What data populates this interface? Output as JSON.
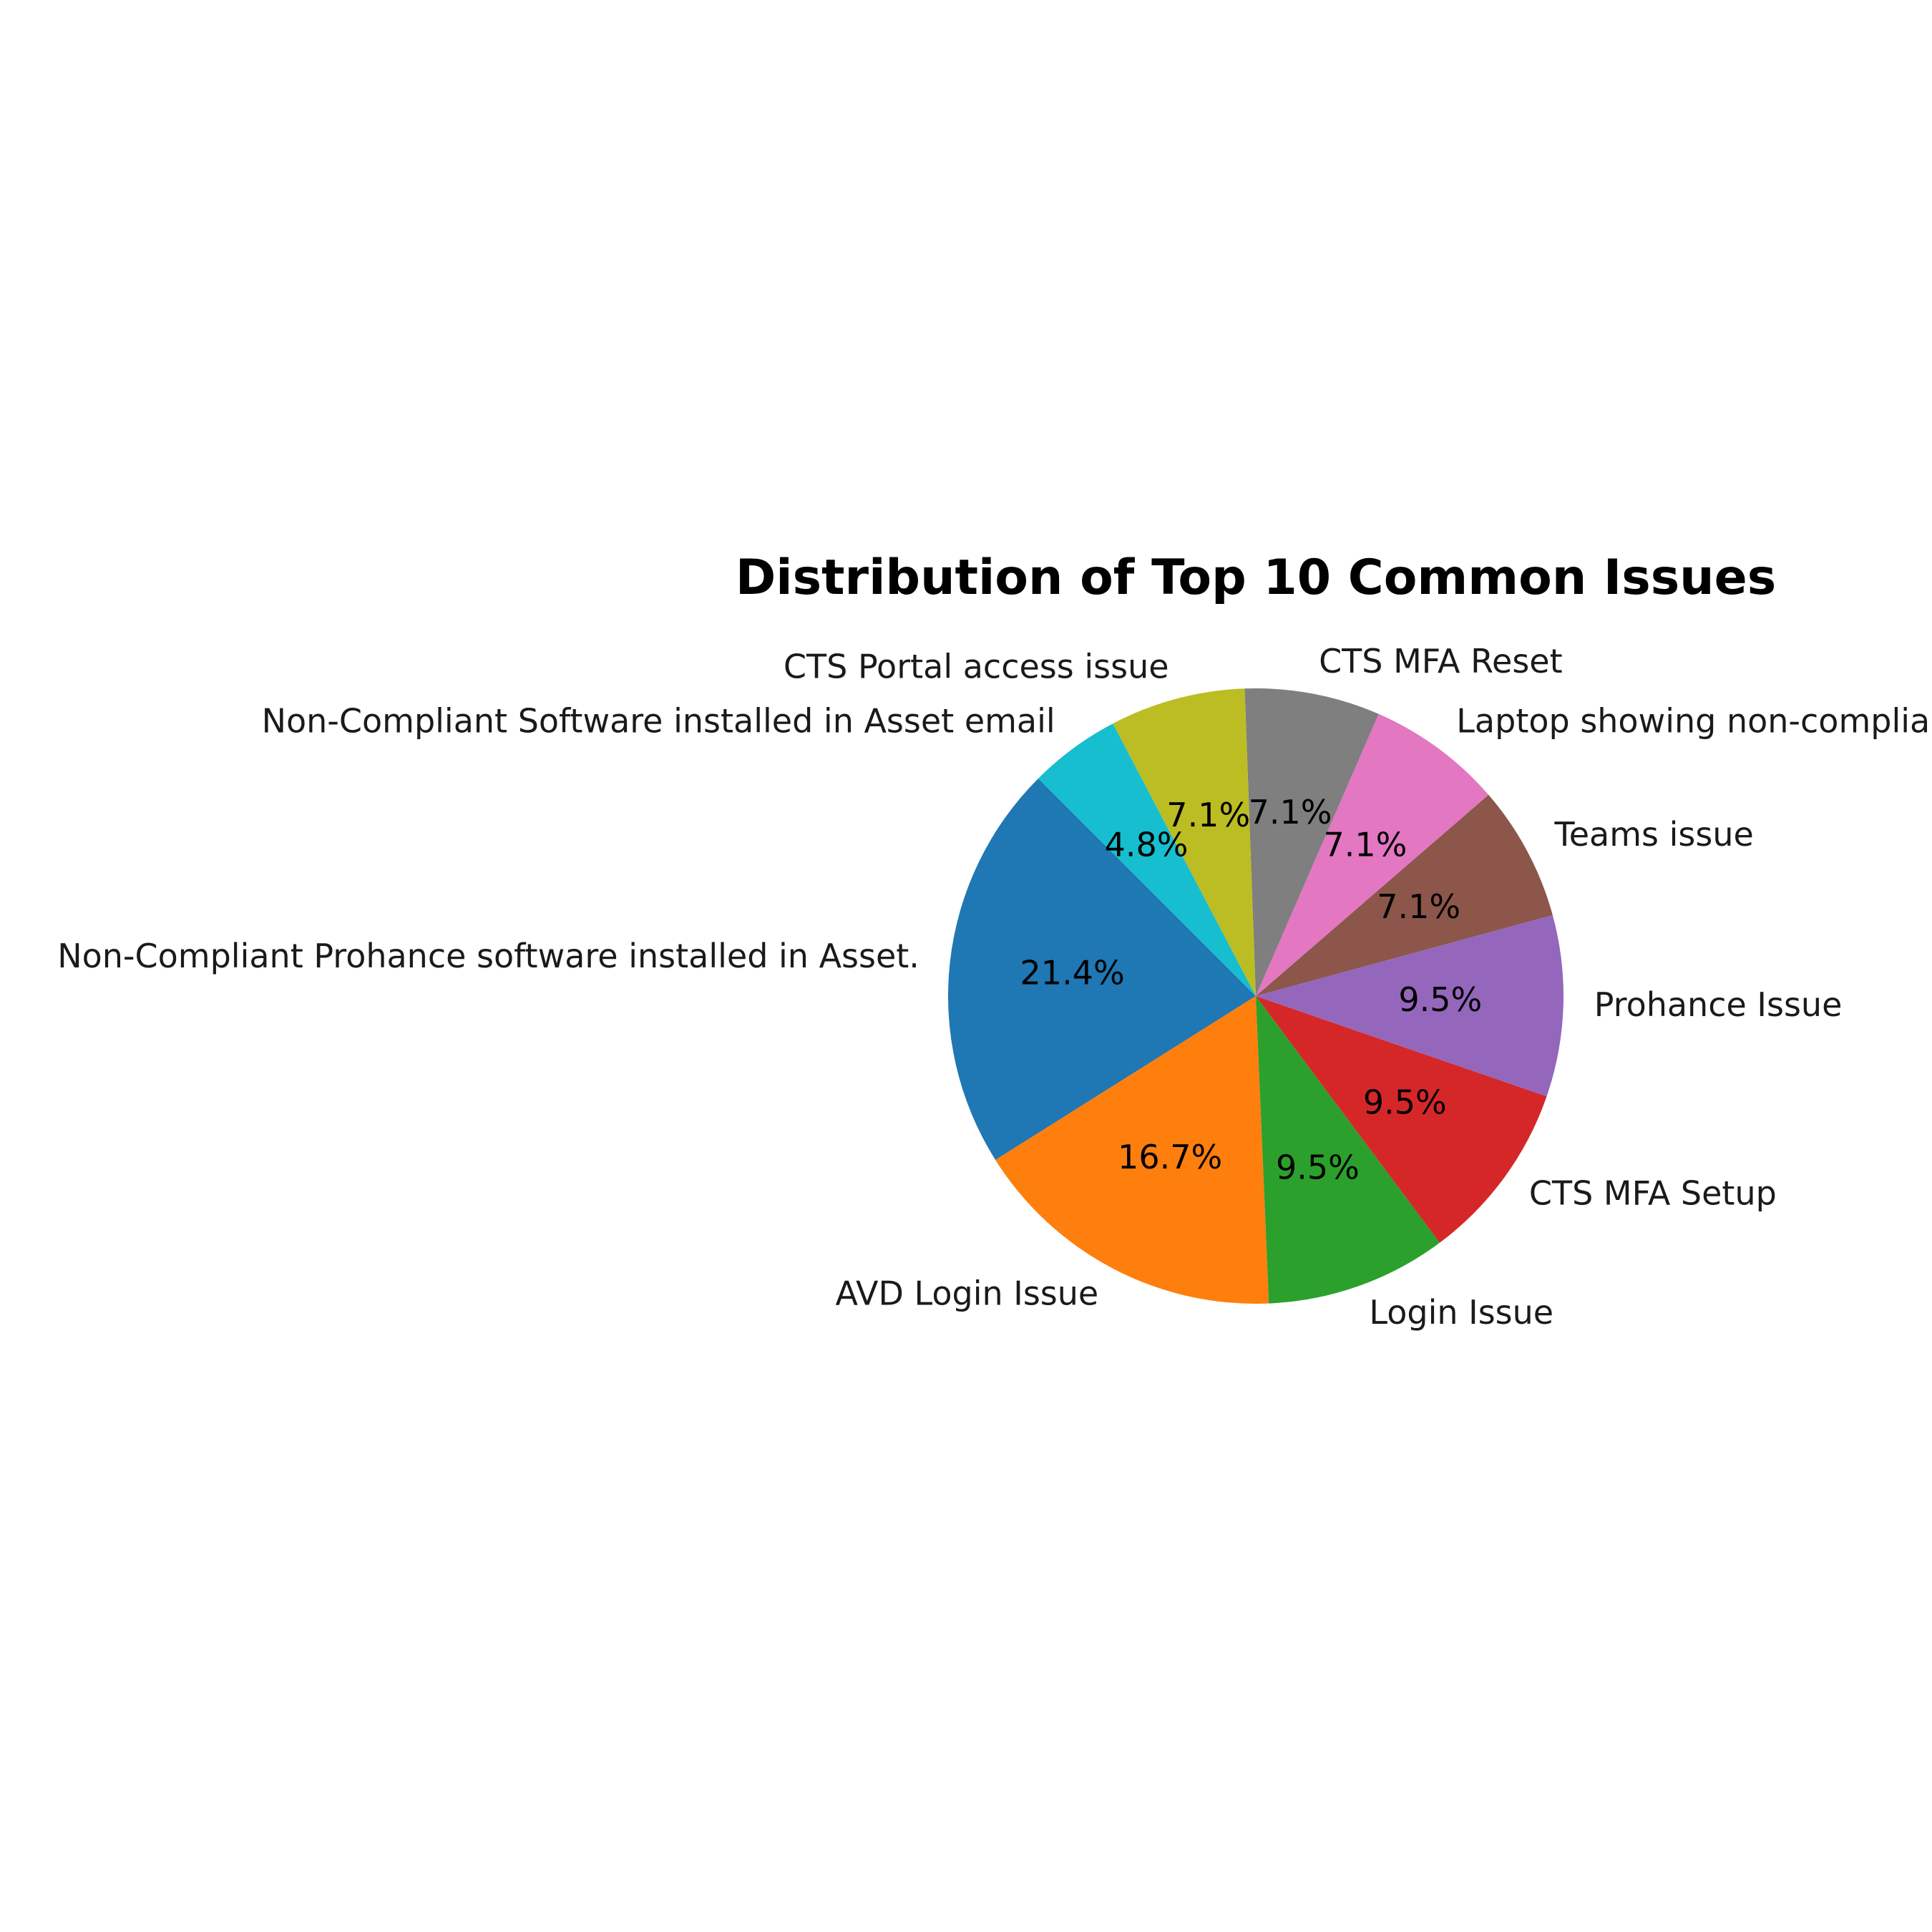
{
  "chart_data": {
    "type": "pie",
    "title": "Distribution of Top 10 Common Issues",
    "start_angle_deg": 135,
    "direction": "counterclockwise",
    "slices": [
      {
        "label": "Non-Compliant Prohance software installed in Asset.",
        "value": 21.4,
        "pct_label": "21.4%",
        "color": "#1f77b4"
      },
      {
        "label": "AVD Login Issue",
        "value": 16.7,
        "pct_label": "16.7%",
        "color": "#ff7f0e"
      },
      {
        "label": "Login Issue",
        "value": 9.5,
        "pct_label": "9.5%",
        "color": "#2ca02c"
      },
      {
        "label": "CTS MFA Setup",
        "value": 9.5,
        "pct_label": "9.5%",
        "color": "#d62728"
      },
      {
        "label": "Prohance Issue",
        "value": 9.5,
        "pct_label": "9.5%",
        "color": "#9467bd"
      },
      {
        "label": "Teams issue",
        "value": 7.1,
        "pct_label": "7.1%",
        "color": "#8c564b"
      },
      {
        "label": "Laptop showing non-compliant",
        "value": 7.1,
        "pct_label": "7.1%",
        "color": "#e377c2"
      },
      {
        "label": "CTS MFA Reset",
        "value": 7.1,
        "pct_label": "7.1%",
        "color": "#7f7f7f"
      },
      {
        "label": "CTS Portal access issue",
        "value": 7.1,
        "pct_label": "7.1%",
        "color": "#bcbd22"
      },
      {
        "label": "Non-Compliant Software installed in Asset email",
        "value": 4.8,
        "pct_label": "4.8%",
        "color": "#17becf"
      }
    ]
  }
}
